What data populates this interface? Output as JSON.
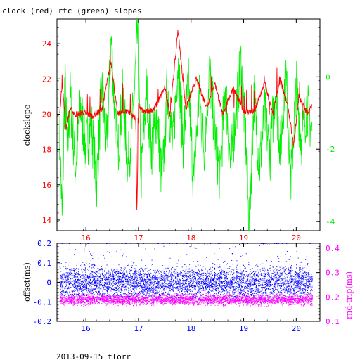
{
  "title": "clock (red) rtc (green) slopes",
  "footer": "2013-09-15 florr",
  "colors": {
    "red": "#ff0000",
    "green": "#00ee00",
    "blue": "#0000ff",
    "magenta": "#ff00ff",
    "black": "#000000"
  },
  "chart_data": [
    {
      "type": "line",
      "title": "clock (red) rtc (green) slopes",
      "xlim": [
        15.45,
        20.45
      ],
      "x_ticks": [
        "16",
        "17",
        "18",
        "19",
        "20"
      ],
      "ylabel": "clockslope",
      "ylim": [
        13.4,
        25.4
      ],
      "y_ticks_left": [
        "14",
        "16",
        "18",
        "20",
        "22",
        "24"
      ],
      "y2lim": [
        -4.25,
        1.6
      ],
      "y_ticks_right": [
        "-4",
        "-2",
        "0"
      ],
      "grid": false,
      "series": [
        {
          "name": "clock",
          "color": "#ff0000",
          "axis": "left",
          "x": [
            15.5,
            15.55,
            15.62,
            15.7,
            15.8,
            15.95,
            16.1,
            16.3,
            16.48,
            16.6,
            16.8,
            16.95,
            16.97,
            17.0,
            17.1,
            17.3,
            17.5,
            17.6,
            17.75,
            17.9,
            18.1,
            18.3,
            18.45,
            18.6,
            18.8,
            19.0,
            19.2,
            19.4,
            19.55,
            19.7,
            19.85,
            19.95,
            20.05,
            20.2,
            20.3
          ],
          "values": [
            20.0,
            21.8,
            19.2,
            20.3,
            20.0,
            20.1,
            19.9,
            20.2,
            23.0,
            20.0,
            20.2,
            19.7,
            14.2,
            20.5,
            20.1,
            20.3,
            21.5,
            20.0,
            24.8,
            20.3,
            22.0,
            20.4,
            21.8,
            20.0,
            21.5,
            20.2,
            20.1,
            21.8,
            20.0,
            22.0,
            20.3,
            18.2,
            21.0,
            20.1,
            20.4
          ]
        },
        {
          "name": "rtc",
          "color": "#00ee00",
          "axis": "right",
          "x": [
            15.5,
            15.55,
            15.6,
            15.65,
            15.7,
            15.8,
            15.9,
            16.0,
            16.1,
            16.2,
            16.3,
            16.4,
            16.48,
            16.55,
            16.6,
            16.7,
            16.8,
            16.9,
            16.98,
            17.05,
            17.15,
            17.25,
            17.35,
            17.45,
            17.55,
            17.65,
            17.75,
            17.85,
            17.95,
            18.05,
            18.15,
            18.25,
            18.35,
            18.45,
            18.55,
            18.65,
            18.75,
            18.85,
            18.95,
            19.05,
            19.1,
            19.2,
            19.3,
            19.4,
            19.5,
            19.6,
            19.7,
            19.8,
            19.9,
            20.0,
            20.1,
            20.2,
            20.3
          ],
          "values": [
            -1.5,
            -4.0,
            0.0,
            -2.2,
            -0.5,
            -2.5,
            -0.8,
            -2.0,
            -1.2,
            -3.0,
            -0.3,
            -2.0,
            1.1,
            -1.0,
            -2.2,
            -0.5,
            -2.5,
            -1.0,
            1.2,
            -2.8,
            -0.3,
            -2.0,
            -1.0,
            -3.0,
            -0.2,
            -2.0,
            0.5,
            -1.8,
            -0.2,
            -3.0,
            -0.5,
            -2.0,
            0.2,
            -1.5,
            -2.8,
            -0.2,
            -2.5,
            -1.0,
            0.4,
            -2.0,
            -4.2,
            -0.5,
            -2.5,
            -1.0,
            -2.2,
            -0.3,
            -2.0,
            0.2,
            -2.8,
            -0.2,
            -1.8,
            -0.8,
            -1.5
          ]
        }
      ]
    },
    {
      "type": "scatter",
      "xlim": [
        15.45,
        20.45
      ],
      "x_ticks": [
        "16",
        "17",
        "18",
        "19",
        "20"
      ],
      "ylabel": "offset(ms)",
      "ylim": [
        -0.2,
        0.2
      ],
      "y_ticks_left": [
        "-0.2",
        "-0.1",
        "0",
        "0.1",
        "0.2"
      ],
      "y2label": "rnd-trip(ms)",
      "y2lim": [
        0.1,
        0.42
      ],
      "y_ticks_right": [
        "0.1",
        "0.2",
        "0.3",
        "0.4"
      ],
      "grid": false,
      "series": [
        {
          "name": "offset",
          "color": "#0000ff",
          "axis": "left",
          "x_range": [
            15.5,
            20.3
          ],
          "center": 0.0,
          "spread": 0.08,
          "outlier_max": 0.18
        },
        {
          "name": "rnd-trip",
          "color": "#ff00ff",
          "axis": "right",
          "x_range": [
            15.5,
            20.3
          ],
          "center": 0.19,
          "spread": 0.02
        }
      ]
    }
  ]
}
